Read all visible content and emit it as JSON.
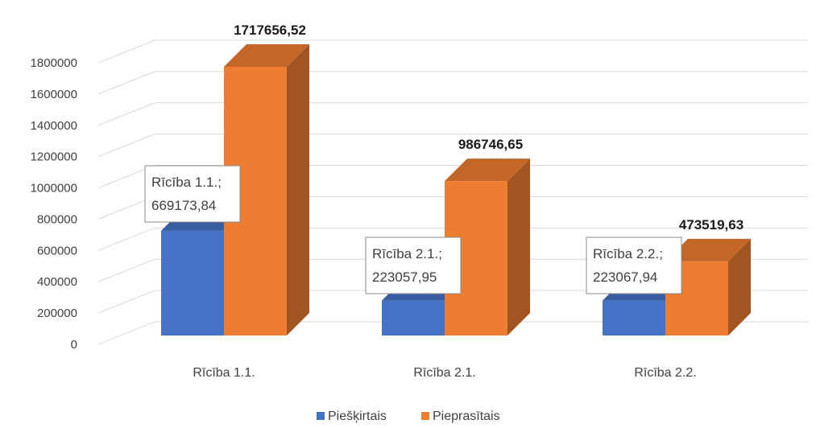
{
  "chart_data": {
    "type": "bar",
    "style": "3d-clustered-column",
    "categories": [
      "Rīcība 1.1.",
      "Rīcība 2.1.",
      "Rīcība 2.2."
    ],
    "series": [
      {
        "name": "Piešķirtais",
        "color": "#4472c4",
        "values": [
          669173.84,
          223057.95,
          223067.94
        ]
      },
      {
        "name": "Pieprasītais",
        "color": "#ed7d31",
        "values": [
          1717656.52,
          986746.65,
          473519.63
        ]
      }
    ],
    "ylim": [
      0,
      1800000
    ],
    "yticks": [
      0,
      200000,
      400000,
      600000,
      800000,
      1000000,
      1200000,
      1400000,
      1600000,
      1800000
    ],
    "ytick_labels": [
      "0",
      "200000",
      "400000",
      "600000",
      "800000",
      "1000000",
      "1200000",
      "1400000",
      "1600000",
      "1800000"
    ],
    "data_labels": {
      "Pieprasītais": [
        "1717656,52",
        "986746,65",
        "473519,63"
      ],
      "Piešķirtais": [
        {
          "line1": "Rīcība 1.1.;",
          "line2": "669173,84"
        },
        {
          "line1": "Rīcība 2.1.;",
          "line2": "223057,95"
        },
        {
          "line1": "Rīcība 2.2.;",
          "line2": "223067,94"
        }
      ]
    },
    "grid": true,
    "legend": "bottom"
  }
}
